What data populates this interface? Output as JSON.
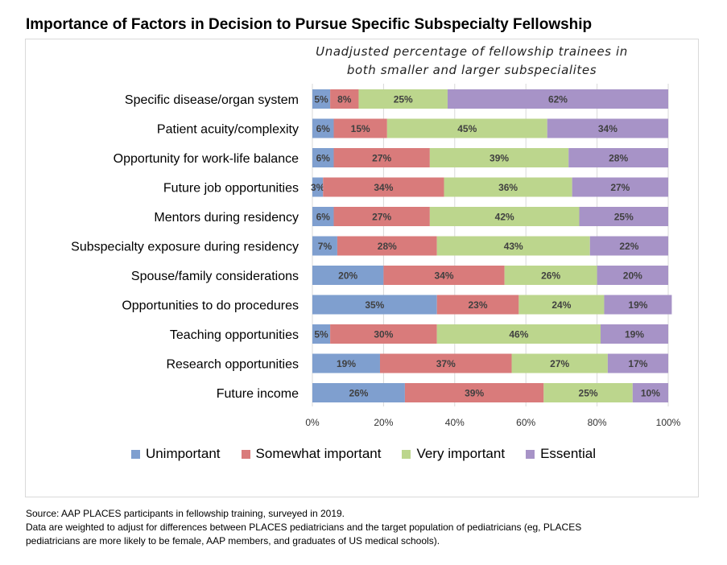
{
  "page": {
    "title": "Importance of Factors in Decision to Pursue Specific Subspecialty Fellowship",
    "source_lines": [
      "Source: AAP PLACES participants in fellowship training, surveyed in 2019.",
      "Data are weighted to adjust for differences between PLACES pediatricians and the target population of pediatricians (eg, PLACES",
      "pediatricians are more likely to be female, AAP members, and graduates of US medical schools)."
    ]
  },
  "chart_data": {
    "type": "bar",
    "orientation": "horizontal",
    "stacked": true,
    "subtitle_lines": [
      "Unadjusted percentage of fellowship trainees in",
      "both smaller and larger subspecialites"
    ],
    "categories": [
      "Specific disease/organ system",
      "Patient acuity/complexity",
      "Opportunity for work-life balance",
      "Future job opportunities",
      "Mentors during residency",
      "Subspecialty exposure during residency",
      "Spouse/family considerations",
      "Opportunities to do procedures",
      "Teaching opportunities",
      "Research opportunities",
      "Future income"
    ],
    "series": [
      {
        "name": "Unimportant",
        "color": "#7f9fcf",
        "values": [
          5,
          6,
          6,
          3,
          6,
          7,
          20,
          35,
          5,
          19,
          26
        ]
      },
      {
        "name": "Somewhat important",
        "color": "#d97b7b",
        "values": [
          8,
          15,
          27,
          34,
          27,
          28,
          34,
          23,
          30,
          37,
          39
        ]
      },
      {
        "name": "Very important",
        "color": "#bcd68d",
        "values": [
          25,
          45,
          39,
          36,
          42,
          43,
          26,
          24,
          46,
          27,
          25
        ]
      },
      {
        "name": "Essential",
        "color": "#a793c7",
        "values": [
          62,
          34,
          28,
          27,
          25,
          22,
          20,
          19,
          19,
          17,
          10
        ]
      }
    ],
    "xlim": [
      0,
      100
    ],
    "xticks": [
      "0%",
      "20%",
      "40%",
      "60%",
      "80%",
      "100%"
    ],
    "value_suffix": "%",
    "grid": true,
    "legend_position": "bottom"
  }
}
